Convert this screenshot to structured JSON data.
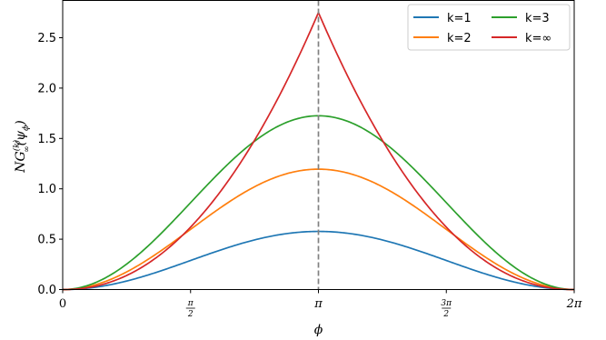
{
  "chart_data": {
    "type": "line",
    "xlabel": "ϕ",
    "ylabel": "NG∞(k)(ψϕ)",
    "xlim": [
      0,
      6.283185307
    ],
    "ylim": [
      0,
      2.87
    ],
    "x_ticks": [
      {
        "value": 0,
        "label": "0"
      },
      {
        "value": 1.5707963,
        "label": "π/2",
        "num": "π",
        "den": "2"
      },
      {
        "value": 3.1415927,
        "label": "π"
      },
      {
        "value": 4.712389,
        "label": "3π/2",
        "num": "3π",
        "den": "2"
      },
      {
        "value": 6.2831853,
        "label": "2π"
      }
    ],
    "y_ticks": [
      {
        "value": 0.0,
        "label": "0.0"
      },
      {
        "value": 0.5,
        "label": "0.5"
      },
      {
        "value": 1.0,
        "label": "1.0"
      },
      {
        "value": 1.5,
        "label": "1.5"
      },
      {
        "value": 2.0,
        "label": "2.0"
      },
      {
        "value": 2.5,
        "label": "2.5"
      }
    ],
    "vline": {
      "x": 3.1415927,
      "style": "dashed",
      "color": "#808080"
    },
    "legend": {
      "position": "top-right",
      "columns": 2
    },
    "grid": false,
    "series": [
      {
        "name": "k=1",
        "color": "#1f77b4",
        "peak": 0.577
      },
      {
        "name": "k=2",
        "color": "#ff7f0e",
        "peak": 1.195
      },
      {
        "name": "k=3",
        "color": "#2ca02c",
        "peak": 1.725
      },
      {
        "name": "k=∞",
        "color": "#d62728",
        "peak": 2.75
      }
    ]
  }
}
